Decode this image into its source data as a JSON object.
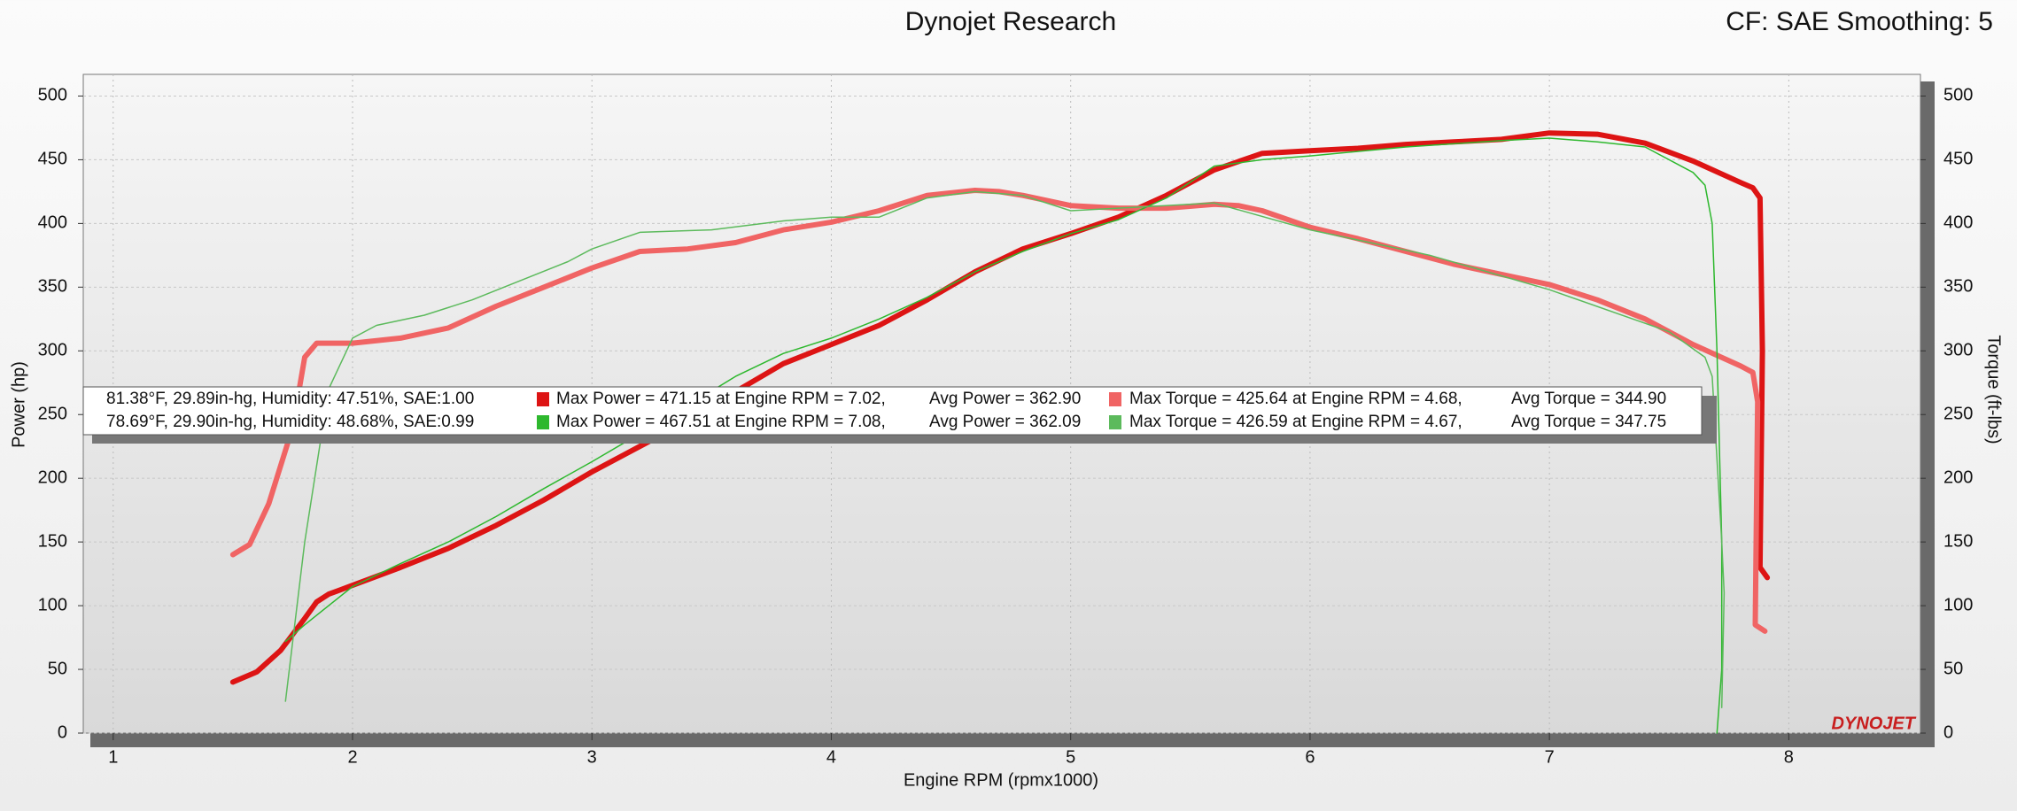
{
  "chart_data": {
    "type": "line",
    "title": "Dynojet Research",
    "subtitle": "CF: SAE Smoothing: 5",
    "x_label": "Engine RPM (rpmx1000)",
    "y_label": "Power (hp)",
    "y2_label": "Torque (ft-lbs)",
    "logo": "DYNOJET",
    "xlim": [
      0.875,
      8.55
    ],
    "xticks": [
      1,
      2,
      3,
      4,
      5,
      6,
      7,
      8
    ],
    "ylim": [
      0,
      517
    ],
    "yticks": [
      0,
      50,
      100,
      150,
      200,
      250,
      300,
      350,
      400,
      450,
      500
    ],
    "y2lim": [
      0,
      517
    ],
    "y2ticks": [
      0,
      50,
      100,
      150,
      200,
      250,
      300,
      350,
      400,
      450,
      500
    ],
    "grid": true,
    "series": [
      {
        "name": "Max Power = 471.15 at Engine RPM = 7.02,",
        "color": "#dd1414",
        "width": 6,
        "x": [
          1.5,
          1.6,
          1.7,
          1.8,
          1.85,
          1.9,
          2.0,
          2.2,
          2.4,
          2.6,
          2.8,
          3.0,
          3.2,
          3.4,
          3.6,
          3.8,
          4.0,
          4.2,
          4.4,
          4.6,
          4.8,
          5.0,
          5.2,
          5.4,
          5.6,
          5.8,
          6.0,
          6.2,
          6.4,
          6.6,
          6.8,
          7.0,
          7.2,
          7.4,
          7.6,
          7.8,
          7.85,
          7.88,
          7.89,
          7.88,
          7.91
        ],
        "values": [
          40,
          48,
          65,
          90,
          103,
          109,
          116,
          130,
          145,
          163,
          183,
          205,
          225,
          245,
          268,
          290,
          305,
          320,
          340,
          362,
          380,
          392,
          405,
          422,
          442,
          455,
          457,
          459,
          462,
          464,
          466,
          471,
          470,
          463,
          449,
          432,
          428,
          420,
          300,
          130,
          122
        ]
      },
      {
        "name": "Max Power = 467.51 at Engine RPM = 7.08,",
        "color": "#2eb82e",
        "width": 1.5,
        "x": [
          1.72,
          1.8,
          1.9,
          2.0,
          2.2,
          2.4,
          2.6,
          2.8,
          3.0,
          3.2,
          3.4,
          3.6,
          3.8,
          4.0,
          4.2,
          4.4,
          4.6,
          4.8,
          5.0,
          5.2,
          5.4,
          5.6,
          5.8,
          6.0,
          6.4,
          6.8,
          7.0,
          7.2,
          7.4,
          7.6,
          7.65,
          7.68,
          7.7,
          7.72,
          7.72,
          7.7
        ],
        "values": [
          72,
          85,
          100,
          115,
          133,
          150,
          170,
          192,
          213,
          235,
          257,
          280,
          298,
          310,
          325,
          342,
          362,
          378,
          392,
          403,
          420,
          445,
          450,
          453,
          460,
          465,
          467,
          464,
          460,
          440,
          430,
          400,
          300,
          150,
          50,
          0
        ]
      },
      {
        "name": "Max Torque = 425.64 at Engine RPM = 4.68,",
        "color": "#f06464",
        "width": 6,
        "axis": "y2",
        "x": [
          1.5,
          1.57,
          1.65,
          1.75,
          1.8,
          1.85,
          2.0,
          2.2,
          2.4,
          2.6,
          2.8,
          3.0,
          3.2,
          3.4,
          3.6,
          3.8,
          4.0,
          4.2,
          4.4,
          4.6,
          4.7,
          4.8,
          5.0,
          5.2,
          5.4,
          5.6,
          5.7,
          5.8,
          6.0,
          6.2,
          6.4,
          6.6,
          6.8,
          7.0,
          7.2,
          7.4,
          7.6,
          7.8,
          7.85,
          7.87,
          7.86,
          7.9
        ],
        "values": [
          140,
          148,
          180,
          240,
          295,
          306,
          306,
          310,
          318,
          335,
          350,
          365,
          378,
          380,
          385,
          395,
          401,
          410,
          422,
          426,
          425,
          422,
          414,
          412,
          412,
          415,
          414,
          410,
          397,
          388,
          378,
          368,
          360,
          352,
          340,
          325,
          305,
          288,
          283,
          260,
          85,
          80
        ]
      },
      {
        "name": "Max Torque = 426.59 at Engine RPM = 4.67,",
        "color": "#5cba5c",
        "width": 1.5,
        "axis": "y2",
        "x": [
          1.72,
          1.8,
          1.9,
          2.0,
          2.1,
          2.3,
          2.5,
          2.7,
          2.9,
          3.0,
          3.2,
          3.5,
          3.8,
          4.0,
          4.2,
          4.4,
          4.6,
          4.8,
          5.0,
          5.6,
          6.0,
          6.5,
          7.0,
          7.5,
          7.65,
          7.68,
          7.72,
          7.73,
          7.72
        ],
        "values": [
          25,
          150,
          270,
          310,
          320,
          328,
          340,
          355,
          370,
          380,
          393,
          395,
          402,
          405,
          405,
          420,
          425,
          422,
          410,
          416,
          395,
          375,
          348,
          315,
          295,
          280,
          150,
          110,
          20
        ]
      }
    ],
    "legend": {
      "rows": [
        {
          "conditions": "81.38°F, 29.89in-hg, Humidity: 47.51%, SAE:1.00",
          "avg_power": "Avg Power = 362.90",
          "avg_torque": "Avg Torque = 344.90"
        },
        {
          "conditions": "78.69°F, 29.90in-hg, Humidity: 48.68%, SAE:0.99",
          "avg_power": "Avg Power = 362.09",
          "avg_torque": "Avg Torque = 347.75"
        }
      ]
    }
  }
}
